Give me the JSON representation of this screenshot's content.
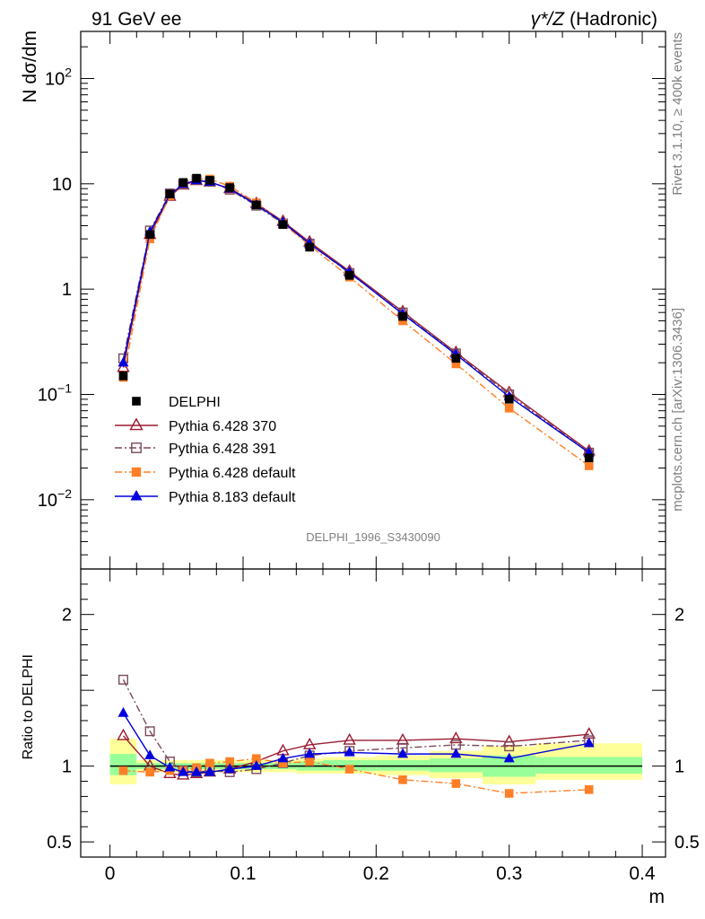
{
  "chart_data": {
    "type": "line",
    "header_left": "91 GeV ee",
    "header_right_symbol": "γ*/Z",
    "header_right_text": "(Hadronic)",
    "analysis_id": "DELPHI_1996_S3430090",
    "side_text_top": "Rivet 3.1.10, ≥ 400k events",
    "side_text_bottom": "mcplots.cern.ch [arXiv:1306.3436]",
    "main_panel": {
      "ylabel": "N dσ/dm",
      "yscale": "log",
      "ylim": [
        0.0022,
        280
      ],
      "y_tick_labels": [
        {
          "value": 100,
          "base": "10",
          "exp": "2"
        },
        {
          "value": 10,
          "text": "10"
        },
        {
          "value": 1,
          "text": "1"
        },
        {
          "value": 0.1,
          "base": "10",
          "exp": "−1"
        },
        {
          "value": 0.01,
          "base": "10",
          "exp": "−2"
        }
      ]
    },
    "ratio_panel": {
      "ylabel": "Ratio to DELPHI",
      "ylim": [
        0.4,
        2.3
      ],
      "y_tick_labels": [
        {
          "value": 2,
          "text": "2"
        },
        {
          "value": 1,
          "text": "1"
        },
        {
          "value": 0.5,
          "text": "0.5"
        }
      ],
      "band_edges": [
        0.0,
        0.02,
        0.04,
        0.05,
        0.06,
        0.07,
        0.08,
        0.1,
        0.12,
        0.14,
        0.16,
        0.2,
        0.24,
        0.28,
        0.32,
        0.4
      ],
      "band_inner": [
        [
          0.94,
          1.08
        ],
        [
          0.98,
          1.02
        ],
        [
          0.98,
          1.02
        ],
        [
          0.98,
          1.02
        ],
        [
          0.98,
          1.02
        ],
        [
          0.98,
          1.02
        ],
        [
          0.98,
          1.02
        ],
        [
          0.98,
          1.02
        ],
        [
          0.98,
          1.02
        ],
        [
          0.97,
          1.03
        ],
        [
          0.97,
          1.04
        ],
        [
          0.97,
          1.04
        ],
        [
          0.96,
          1.05
        ],
        [
          0.93,
          1.07
        ],
        [
          0.95,
          1.06
        ]
      ],
      "band_outer": [
        [
          0.88,
          1.18
        ],
        [
          0.96,
          1.04
        ],
        [
          0.96,
          1.04
        ],
        [
          0.96,
          1.04
        ],
        [
          0.96,
          1.04
        ],
        [
          0.96,
          1.04
        ],
        [
          0.96,
          1.04
        ],
        [
          0.96,
          1.04
        ],
        [
          0.96,
          1.04
        ],
        [
          0.95,
          1.05
        ],
        [
          0.95,
          1.06
        ],
        [
          0.94,
          1.07
        ],
        [
          0.92,
          1.1
        ],
        [
          0.88,
          1.13
        ],
        [
          0.91,
          1.15
        ]
      ]
    },
    "xlabel": "m",
    "xlim": [
      -0.022,
      0.4175
    ],
    "x_tick_labels": [
      "0",
      "0.1",
      "0.2",
      "0.3",
      "0.4"
    ],
    "x_tick_values": [
      0,
      0.1,
      0.2,
      0.3,
      0.4
    ],
    "x": [
      0.01,
      0.03,
      0.045,
      0.055,
      0.065,
      0.075,
      0.09,
      0.11,
      0.13,
      0.15,
      0.18,
      0.22,
      0.26,
      0.3,
      0.36
    ],
    "series": [
      {
        "name": "DELPHI",
        "color": "#000000",
        "style": "data",
        "marker": "square-filled",
        "values": [
          0.15,
          3.3,
          8.0,
          10.3,
          11.3,
          10.8,
          9.2,
          6.3,
          4.1,
          2.5,
          1.35,
          0.55,
          0.22,
          0.09,
          0.025
        ]
      },
      {
        "name": "Pythia 6.428 370",
        "color": "#9b1b30",
        "style": "solid",
        "marker": "triangle-open",
        "values": [
          0.18,
          3.3,
          7.6,
          9.7,
          10.7,
          10.4,
          9.0,
          6.5,
          4.4,
          2.8,
          1.48,
          0.61,
          0.25,
          0.104,
          0.029
        ]
      },
      {
        "name": "Pythia 6.428 391",
        "color": "#7a4a5a",
        "style": "dashdot",
        "marker": "square-open",
        "values": [
          0.22,
          3.6,
          8.1,
          9.9,
          10.9,
          10.5,
          8.8,
          6.2,
          4.2,
          2.7,
          1.42,
          0.6,
          0.245,
          0.1,
          0.028
        ]
      },
      {
        "name": "Pythia 6.428 default",
        "color": "#ff7f27",
        "style": "dashdot",
        "marker": "square-filled",
        "values": [
          0.145,
          3.0,
          7.7,
          9.9,
          11.2,
          11.1,
          9.5,
          6.6,
          4.2,
          2.6,
          1.3,
          0.5,
          0.195,
          0.074,
          0.021
        ]
      },
      {
        "name": "Pythia 8.183 default",
        "color": "#0000dd",
        "style": "solid",
        "marker": "triangle-filled",
        "values": [
          0.2,
          3.5,
          7.9,
          9.9,
          10.8,
          10.4,
          9.0,
          6.3,
          4.3,
          2.7,
          1.44,
          0.58,
          0.24,
          0.095,
          0.028
        ]
      }
    ],
    "ratio_series": [
      {
        "name": "Pythia 6.428 370",
        "values": [
          1.2,
          1.0,
          0.95,
          0.94,
          0.95,
          0.96,
          0.98,
          1.03,
          1.1,
          1.14,
          1.17,
          1.17,
          1.18,
          1.16,
          1.21
        ]
      },
      {
        "name": "Pythia 6.428 391",
        "values": [
          1.57,
          1.23,
          1.03,
          0.97,
          0.96,
          0.97,
          0.96,
          0.98,
          1.02,
          1.07,
          1.1,
          1.12,
          1.14,
          1.13,
          1.17
        ]
      },
      {
        "name": "Pythia 6.428 default",
        "values": [
          0.97,
          0.96,
          0.97,
          0.97,
          0.99,
          1.02,
          1.03,
          1.05,
          1.02,
          1.03,
          0.98,
          0.91,
          0.885,
          0.82,
          0.845
        ]
      },
      {
        "name": "Pythia 8.183 default",
        "values": [
          1.35,
          1.07,
          0.99,
          0.96,
          0.96,
          0.96,
          0.98,
          1.0,
          1.05,
          1.08,
          1.09,
          1.08,
          1.08,
          1.05,
          1.15
        ]
      }
    ]
  }
}
